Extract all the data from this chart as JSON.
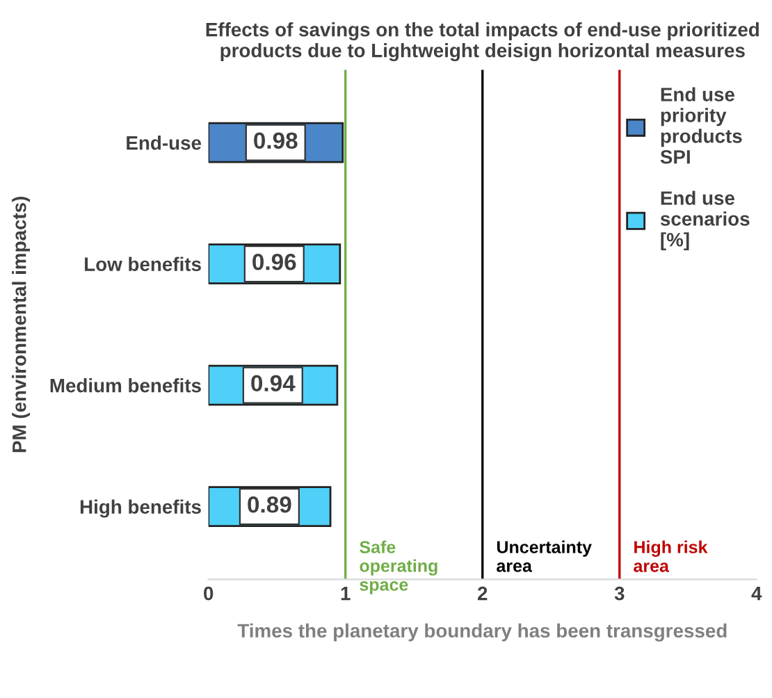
{
  "chart_data": {
    "type": "bar",
    "orientation": "horizontal",
    "title": "Effects of savings on the total impacts of end-use prioritized products due to Lightweight deisign horizontal measures",
    "xlabel": "Times the planetary boundary has been transgressed",
    "ylabel": "PM (environmental impacts)",
    "categories": [
      "End-use",
      "Low benefits",
      "Medium benefits",
      "High benefits"
    ],
    "series": [
      {
        "name": "End use priority products SPI",
        "color": "#4a86c8",
        "values": [
          0.98,
          null,
          null,
          null
        ]
      },
      {
        "name": "End use scenarios [%]",
        "color": "#4fd0f8",
        "values": [
          null,
          0.96,
          0.94,
          0.89
        ]
      }
    ],
    "xlim": [
      0,
      4
    ],
    "xticks": [
      0,
      1,
      2,
      3,
      4
    ],
    "data_labels": true,
    "legend": "top right",
    "grid": false,
    "ref_lines": [
      {
        "axis": "x",
        "value": 1,
        "label": "Safe operating space",
        "color": "#70ad47"
      },
      {
        "axis": "x",
        "value": 2,
        "label": "Uncertainty area",
        "color": "#000000"
      },
      {
        "axis": "x",
        "value": 3,
        "label": "High risk area",
        "color": "#c00000"
      }
    ]
  }
}
